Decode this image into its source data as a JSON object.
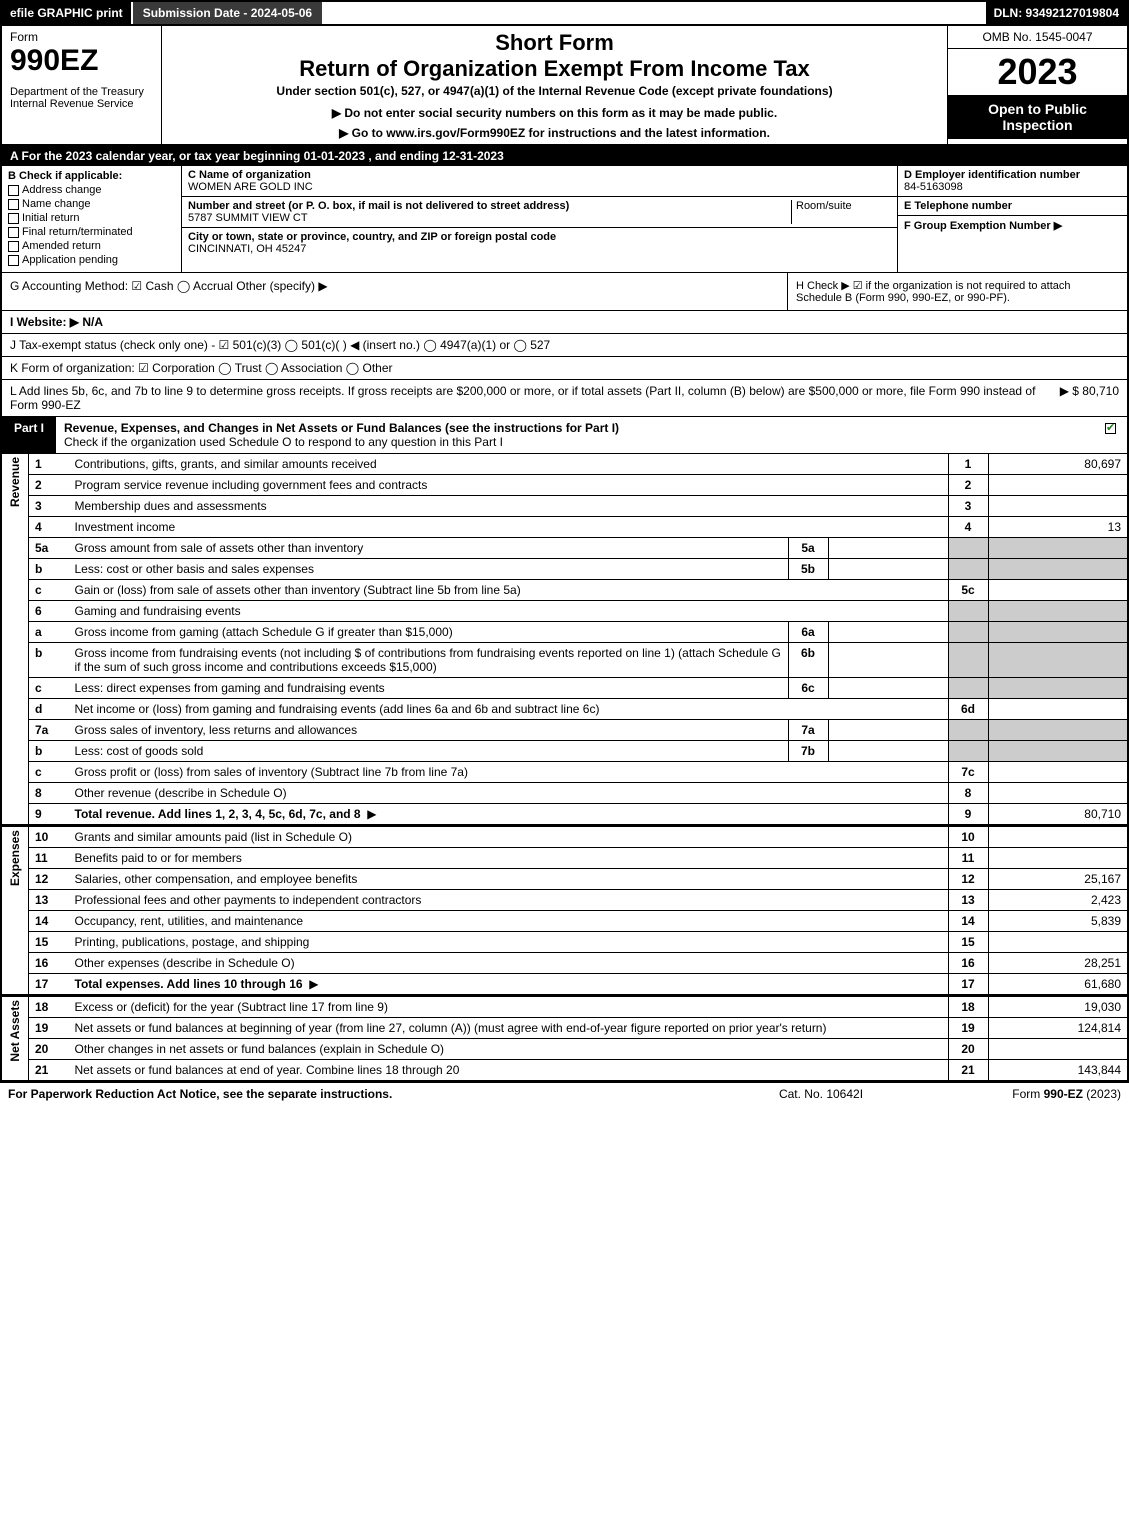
{
  "topbar": {
    "efile": "efile GRAPHIC print",
    "submission": "Submission Date - 2024-05-06",
    "dln": "DLN: 93492127019804"
  },
  "header": {
    "form_word": "Form",
    "form_num": "990EZ",
    "dept": "Department of the Treasury\nInternal Revenue Service",
    "short_form": "Short Form",
    "return_title": "Return of Organization Exempt From Income Tax",
    "under": "Under section 501(c), 527, or 4947(a)(1) of the Internal Revenue Code (except private foundations)",
    "ssn_note": "▶ Do not enter social security numbers on this form as it may be made public.",
    "goto": "▶ Go to www.irs.gov/Form990EZ for instructions and the latest information.",
    "omb": "OMB No. 1545-0047",
    "year": "2023",
    "inspection": "Open to Public Inspection"
  },
  "row_a": "A  For the 2023 calendar year, or tax year beginning 01-01-2023 , and ending 12-31-2023",
  "section_b": {
    "label": "B  Check if applicable:",
    "items": [
      "Address change",
      "Name change",
      "Initial return",
      "Final return/terminated",
      "Amended return",
      "Application pending"
    ]
  },
  "section_c": {
    "name_cap": "C Name of organization",
    "name": "WOMEN ARE GOLD INC",
    "addr_cap": "Number and street (or P. O. box, if mail is not delivered to street address)",
    "room_cap": "Room/suite",
    "addr": "5787 SUMMIT VIEW CT",
    "city_cap": "City or town, state or province, country, and ZIP or foreign postal code",
    "city": "CINCINNATI, OH  45247"
  },
  "section_d": {
    "cap": "D Employer identification number",
    "val": "84-5163098"
  },
  "section_e": {
    "cap": "E Telephone number",
    "val": ""
  },
  "section_f": {
    "cap": "F Group Exemption Number   ▶",
    "val": ""
  },
  "row_g": "G Accounting Method:   ☑ Cash   ◯ Accrual   Other (specify) ▶",
  "row_h": "H   Check ▶  ☑  if the organization is not required to attach Schedule B (Form 990, 990-EZ, or 990-PF).",
  "row_i": "I Website: ▶ N/A",
  "row_j": "J Tax-exempt status (check only one) -  ☑ 501(c)(3)  ◯ 501(c)(  ) ◀ (insert no.)  ◯ 4947(a)(1) or  ◯ 527",
  "row_k": "K Form of organization:   ☑ Corporation   ◯ Trust   ◯ Association   ◯ Other",
  "row_l": {
    "text": "L Add lines 5b, 6c, and 7b to line 9 to determine gross receipts. If gross receipts are $200,000 or more, or if total assets (Part II, column (B) below) are $500,000 or more, file Form 990 instead of Form 990-EZ",
    "val": "▶ $ 80,710"
  },
  "part1": {
    "tab": "Part I",
    "title": "Revenue, Expenses, and Changes in Net Assets or Fund Balances (see the instructions for Part I)",
    "subtitle": "Check if the organization used Schedule O to respond to any question in this Part I"
  },
  "sections": {
    "revenue": "Revenue",
    "expenses": "Expenses",
    "netassets": "Net Assets"
  },
  "lines": [
    {
      "n": "1",
      "desc": "Contributions, gifts, grants, and similar amounts received",
      "r": "1",
      "v": "80,697"
    },
    {
      "n": "2",
      "desc": "Program service revenue including government fees and contracts",
      "r": "2",
      "v": ""
    },
    {
      "n": "3",
      "desc": "Membership dues and assessments",
      "r": "3",
      "v": ""
    },
    {
      "n": "4",
      "desc": "Investment income",
      "r": "4",
      "v": "13"
    },
    {
      "n": "5a",
      "desc": "Gross amount from sale of assets other than inventory",
      "sub": "5a",
      "grey": true
    },
    {
      "n": "b",
      "desc": "Less: cost or other basis and sales expenses",
      "sub": "5b",
      "grey": true
    },
    {
      "n": "c",
      "desc": "Gain or (loss) from sale of assets other than inventory (Subtract line 5b from line 5a)",
      "r": "5c",
      "v": ""
    },
    {
      "n": "6",
      "desc": "Gaming and fundraising events",
      "grey": true,
      "noval": true
    },
    {
      "n": "a",
      "desc": "Gross income from gaming (attach Schedule G if greater than $15,000)",
      "sub": "6a",
      "grey": true
    },
    {
      "n": "b",
      "desc": "Gross income from fundraising events (not including $                     of contributions from fundraising events reported on line 1) (attach Schedule G if the sum of such gross income and contributions exceeds $15,000)",
      "sub": "6b",
      "grey": true
    },
    {
      "n": "c",
      "desc": "Less: direct expenses from gaming and fundraising events",
      "sub": "6c",
      "grey": true
    },
    {
      "n": "d",
      "desc": "Net income or (loss) from gaming and fundraising events (add lines 6a and 6b and subtract line 6c)",
      "r": "6d",
      "v": ""
    },
    {
      "n": "7a",
      "desc": "Gross sales of inventory, less returns and allowances",
      "sub": "7a",
      "grey": true
    },
    {
      "n": "b",
      "desc": "Less: cost of goods sold",
      "sub": "7b",
      "grey": true
    },
    {
      "n": "c",
      "desc": "Gross profit or (loss) from sales of inventory (Subtract line 7b from line 7a)",
      "r": "7c",
      "v": ""
    },
    {
      "n": "8",
      "desc": "Other revenue (describe in Schedule O)",
      "r": "8",
      "v": ""
    },
    {
      "n": "9",
      "desc": "Total revenue. Add lines 1, 2, 3, 4, 5c, 6d, 7c, and 8",
      "r": "9",
      "v": "80,710",
      "bold": true,
      "arrow": true
    }
  ],
  "exp_lines": [
    {
      "n": "10",
      "desc": "Grants and similar amounts paid (list in Schedule O)",
      "r": "10",
      "v": ""
    },
    {
      "n": "11",
      "desc": "Benefits paid to or for members",
      "r": "11",
      "v": ""
    },
    {
      "n": "12",
      "desc": "Salaries, other compensation, and employee benefits",
      "r": "12",
      "v": "25,167"
    },
    {
      "n": "13",
      "desc": "Professional fees and other payments to independent contractors",
      "r": "13",
      "v": "2,423"
    },
    {
      "n": "14",
      "desc": "Occupancy, rent, utilities, and maintenance",
      "r": "14",
      "v": "5,839"
    },
    {
      "n": "15",
      "desc": "Printing, publications, postage, and shipping",
      "r": "15",
      "v": ""
    },
    {
      "n": "16",
      "desc": "Other expenses (describe in Schedule O)",
      "r": "16",
      "v": "28,251"
    },
    {
      "n": "17",
      "desc": "Total expenses. Add lines 10 through 16",
      "r": "17",
      "v": "61,680",
      "bold": true,
      "arrow": true
    }
  ],
  "na_lines": [
    {
      "n": "18",
      "desc": "Excess or (deficit) for the year (Subtract line 17 from line 9)",
      "r": "18",
      "v": "19,030"
    },
    {
      "n": "19",
      "desc": "Net assets or fund balances at beginning of year (from line 27, column (A)) (must agree with end-of-year figure reported on prior year's return)",
      "r": "19",
      "v": "124,814"
    },
    {
      "n": "20",
      "desc": "Other changes in net assets or fund balances (explain in Schedule O)",
      "r": "20",
      "v": ""
    },
    {
      "n": "21",
      "desc": "Net assets or fund balances at end of year. Combine lines 18 through 20",
      "r": "21",
      "v": "143,844"
    }
  ],
  "footer": {
    "left": "For Paperwork Reduction Act Notice, see the separate instructions.",
    "mid": "Cat. No. 10642I",
    "right": "Form 990-EZ (2023)"
  },
  "colors": {
    "black": "#000000",
    "grey": "#cccccc",
    "darkgrey": "#3a3a3a",
    "check": "#2a7a2a"
  }
}
